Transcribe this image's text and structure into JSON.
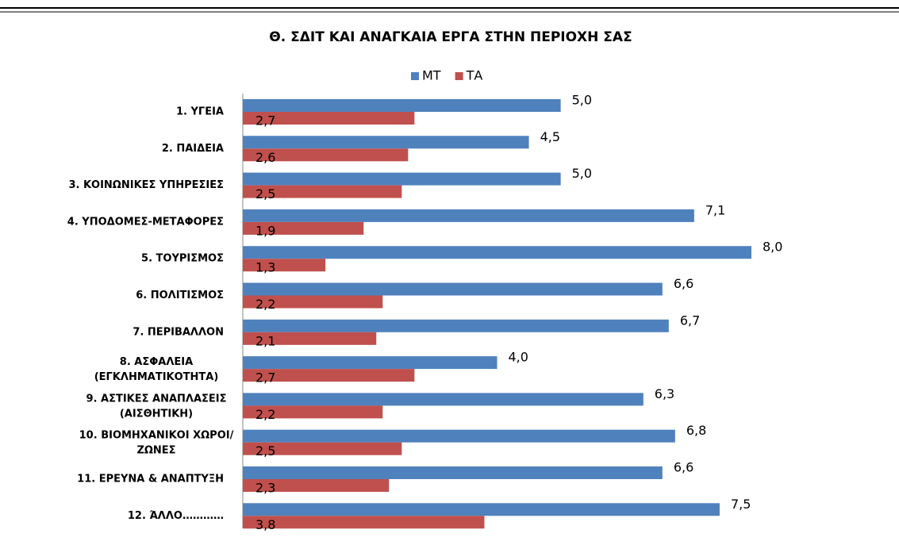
{
  "chart_data": {
    "type": "hbar",
    "title": "Θ. ΣΔΙΤ ΚΑΙ ΑΝΑΓΚΑΙΑ ΕΡΓΑ ΣΤΗΝ ΠΕΡΙΟΧΗ ΣΑΣ",
    "categories": [
      "1. ΥΓΕΙΑ",
      "2. ΠΑΙΔΕΙΑ",
      "3. ΚΟΙΝΩΝΙΚΕΣ ΥΠΗΡΕΣΙΕΣ",
      "4. ΥΠΟΔΟΜΕΣ-ΜΕΤΑΦΟΡΕΣ",
      "5. ΤΟΥΡΙΣΜΟΣ",
      "6. ΠΟΛΙΤΙΣΜΟΣ",
      "7. ΠΕΡΙΒΑΛΛΟΝ",
      "8. ΑΣΦΑΛΕΙΑ\n(ΕΓΚΛΗΜΑΤΙΚΟΤΗΤΑ)",
      "9. ΑΣΤΙΚΕΣ ΑΝΑΠΛΑΣΕΙΣ\n(ΑΙΣΘΗΤΙΚΗ)",
      "10. ΒΙΟΜΗΧΑΝΙΚΟΙ ΧΩΡΟΙ/\nΖΩΝΕΣ",
      "11. ΕΡΕΥΝΑ & ΑΝΑΠΤΥΞΗ",
      "12. ΆΛΛΟ…………"
    ],
    "series": [
      {
        "name": "ΜΤ",
        "color": "#4f81bd",
        "values": [
          5.0,
          4.5,
          5.0,
          7.1,
          8.0,
          6.6,
          6.7,
          4.0,
          6.3,
          6.8,
          6.6,
          7.5
        ],
        "value_labels": [
          "5,0",
          "4,5",
          "5,0",
          "7,1",
          "8,0",
          "6,6",
          "6,7",
          "4,0",
          "6,3",
          "6,8",
          "6,6",
          "7,5"
        ]
      },
      {
        "name": "ΤΑ",
        "color": "#c0504d",
        "values": [
          2.7,
          2.6,
          2.5,
          1.9,
          1.3,
          2.2,
          2.1,
          2.7,
          2.2,
          2.5,
          2.3,
          3.8
        ],
        "value_labels": [
          "2,7",
          "2,6",
          "2,5",
          "1,9",
          "1,3",
          "2,2",
          "2,1",
          "2,7",
          "2,2",
          "2,5",
          "2,3",
          "3,8"
        ]
      }
    ],
    "xlim": [
      0,
      8
    ],
    "legend": "top"
  }
}
